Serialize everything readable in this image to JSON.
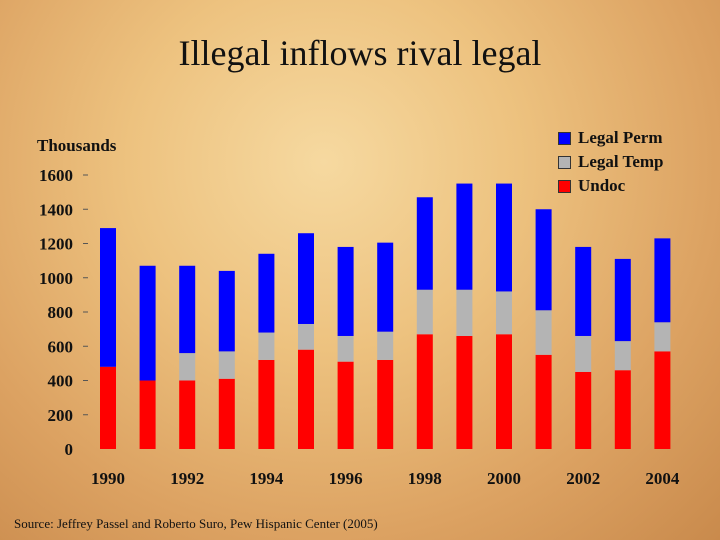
{
  "slide": {
    "title": "Illegal inflows rival legal",
    "source": "Source:  Jeffrey Passel and Roberto Suro, Pew Hispanic Center (2005)"
  },
  "chart_data": {
    "type": "bar",
    "stacked": true,
    "ylabel": "Thousands",
    "ylim": [
      0,
      1600
    ],
    "yticks": [
      "0",
      "200",
      "400",
      "600",
      "800",
      "1000",
      "1200",
      "1400",
      "1600"
    ],
    "categories": [
      "1990",
      "1991",
      "1992",
      "1993",
      "1994",
      "1995",
      "1996",
      "1997",
      "1998",
      "1999",
      "2000",
      "2001",
      "2002",
      "2003",
      "2004"
    ],
    "xtick_labels": [
      "1990",
      "",
      "1992",
      "",
      "1994",
      "",
      "1996",
      "",
      "1998",
      "",
      "2000",
      "",
      "2002",
      "",
      "2004"
    ],
    "legend_position": "top-right",
    "series": [
      {
        "name": "Undoc",
        "color": "#ff0000",
        "values": [
          480,
          400,
          400,
          410,
          520,
          580,
          510,
          520,
          670,
          660,
          670,
          550,
          450,
          460,
          570
        ]
      },
      {
        "name": "Legal Temp",
        "color": "#b4b4b4",
        "values": [
          0,
          0,
          160,
          160,
          160,
          150,
          150,
          165,
          260,
          270,
          250,
          260,
          210,
          170,
          170
        ]
      },
      {
        "name": "Legal Perm",
        "color": "#0000ff",
        "values": [
          810,
          670,
          510,
          470,
          460,
          530,
          520,
          520,
          540,
          620,
          630,
          590,
          520,
          480,
          490
        ]
      }
    ],
    "legend_order": [
      "Legal Perm",
      "Legal Temp",
      "Undoc"
    ]
  }
}
